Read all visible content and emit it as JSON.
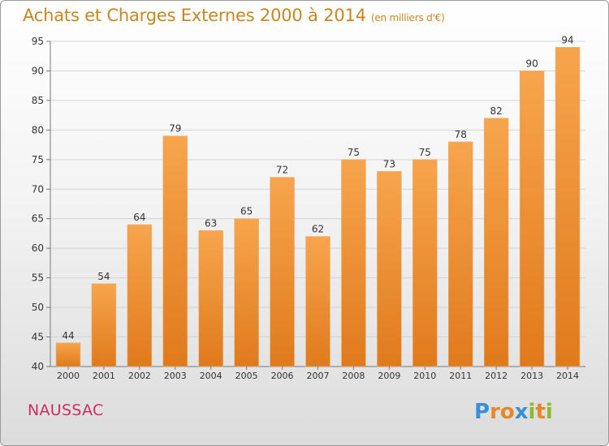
{
  "title": "Achats et Charges Externes 2000 à 2014",
  "subtitle": "(en milliers d'€)",
  "commune": "NAUSSAC",
  "brand": "Proxiti",
  "colors": {
    "bar_top": "#f7a54d",
    "bar_bottom": "#e07a1c",
    "title": "#c8861f",
    "commune": "#cc2d62"
  },
  "chart_data": {
    "type": "bar",
    "title": "Achats et Charges Externes 2000 à 2014",
    "subtitle": "(en milliers d'€)",
    "categories": [
      "2000",
      "2001",
      "2002",
      "2003",
      "2004",
      "2005",
      "2006",
      "2007",
      "2008",
      "2009",
      "2010",
      "2011",
      "2012",
      "2013",
      "2014"
    ],
    "values": [
      44,
      54,
      64,
      79,
      63,
      65,
      72,
      62,
      75,
      73,
      75,
      78,
      82,
      90,
      94
    ],
    "ylim": [
      40,
      95
    ],
    "yticks": [
      40,
      45,
      50,
      55,
      60,
      65,
      70,
      75,
      80,
      85,
      90,
      95
    ],
    "grid": true,
    "xlabel": "",
    "ylabel": ""
  }
}
